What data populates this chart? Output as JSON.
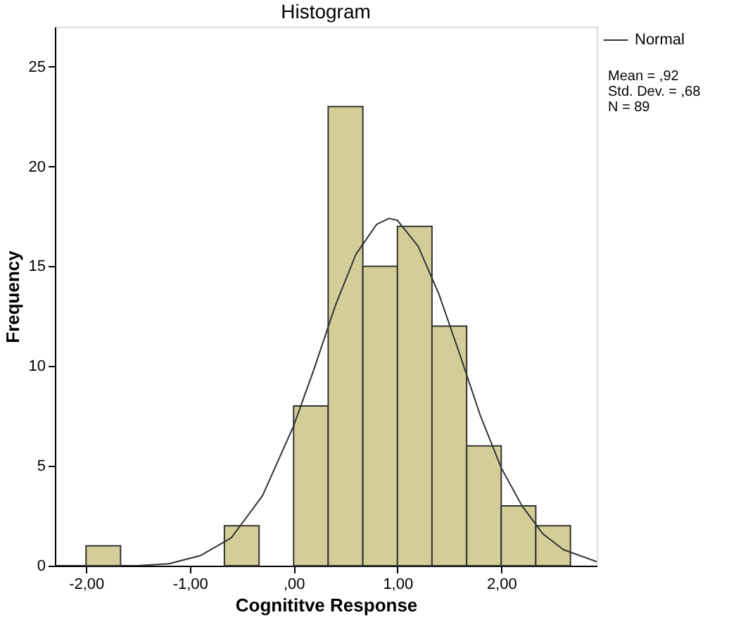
{
  "chart_data": {
    "type": "histogram",
    "title": "Histogram",
    "xlabel": "Cognititve Response",
    "ylabel": "Frequency",
    "bins": [
      -2,
      -1.667,
      -1.333,
      -1,
      -0.667,
      -0.333,
      0,
      0.333,
      0.667,
      1,
      1.333,
      1.667,
      2,
      2.333,
      2.667
    ],
    "values": [
      1,
      0,
      0,
      0,
      2,
      0,
      8,
      23,
      15,
      17,
      12,
      6,
      3,
      2
    ],
    "color": "#d3ce97",
    "series": [
      {
        "name": "Normal",
        "type": "line",
        "color": "#333333",
        "x": [
          -2.3,
          -1.9,
          -1.5,
          -1.2,
          -0.9,
          -0.6,
          -0.3,
          0,
          0.2,
          0.4,
          0.6,
          0.8,
          0.92,
          1.0,
          1.2,
          1.4,
          1.6,
          1.8,
          2.0,
          2.2,
          2.4,
          2.6,
          2.92
        ],
        "values": [
          0,
          0,
          0,
          0.1,
          0.5,
          1.4,
          3.5,
          7.0,
          9.9,
          13.0,
          15.6,
          17.1,
          17.4,
          17.3,
          16.0,
          13.6,
          10.6,
          7.5,
          4.9,
          3.0,
          1.6,
          0.8,
          0.2
        ]
      }
    ],
    "xlim": [
      -2.3,
      2.92
    ],
    "ylim": [
      0,
      27
    ],
    "xticks": [
      {
        "value": -2,
        "label": "-2,00"
      },
      {
        "value": -1,
        "label": "-1,00"
      },
      {
        "value": 0,
        "label": ",00"
      },
      {
        "value": 1,
        "label": "1,00"
      },
      {
        "value": 2,
        "label": "2,00"
      }
    ],
    "yticks": [
      0,
      5,
      10,
      15,
      20,
      25
    ],
    "annotations": [
      "Mean = ,92",
      "Std. Dev. = ,68",
      "N = 89"
    ],
    "legend": "top right",
    "grid": false
  }
}
